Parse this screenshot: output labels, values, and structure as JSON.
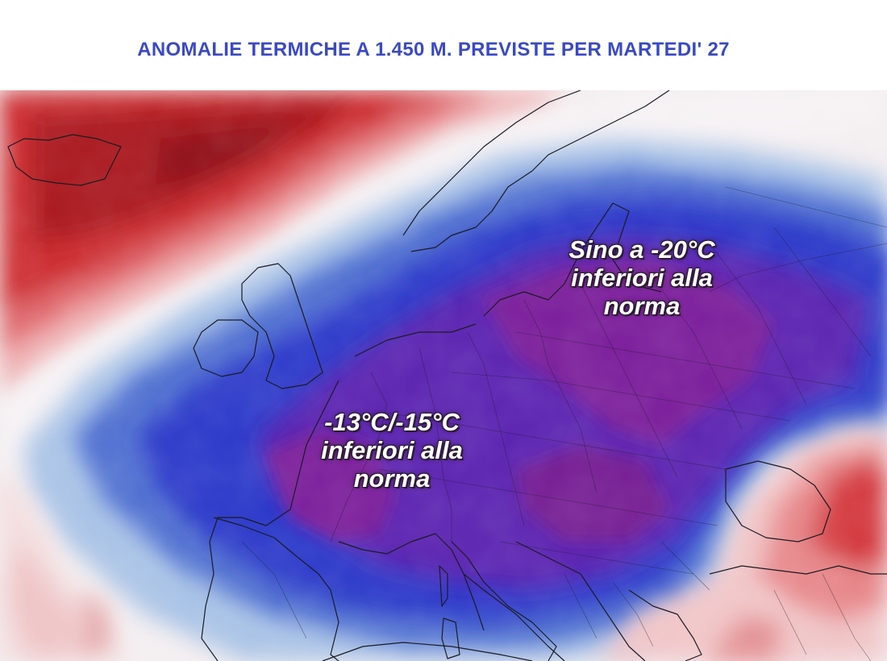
{
  "title": "ANOMALIE TERMICHE A 1.450 M. PREVISTE PER MARTEDI' 27",
  "annotations": {
    "east": {
      "line1": "Sino a -20°C",
      "line2": "inferiori alla",
      "line3": "norma"
    },
    "west": {
      "line1": "-13°C/-15°C",
      "line2": "inferiori alla",
      "line3": "norma"
    }
  },
  "colors": {
    "title": "#3a49c4",
    "warm_anomaly": "#c0161c",
    "cold_anomaly": "#2b37c9",
    "extreme_cold_anomaly": "#7a1f9a",
    "neutral": "#f4f4f6"
  }
}
